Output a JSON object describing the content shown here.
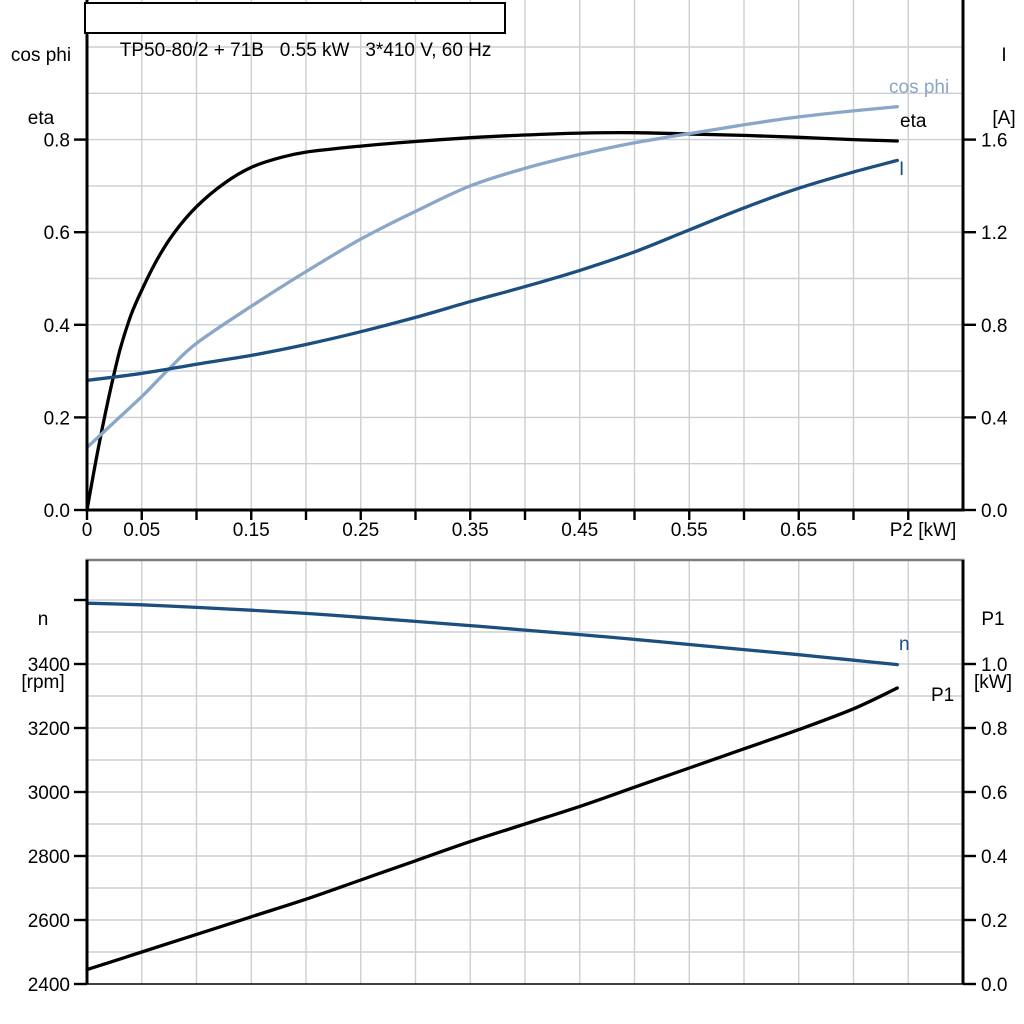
{
  "header": {
    "title": "TP50-80/2 + 71B   0.55 kW   3*410 V, 60 Hz"
  },
  "colors": {
    "curve_black": "#000000",
    "curve_dark_blue": "#1c4e7e",
    "curve_light_blue": "#8aa6c8",
    "grid": "#cbcfd3",
    "border_gray": "#7f7f7f",
    "axis": "#000000",
    "text": "#000000"
  },
  "top_chart": {
    "left_axis_title_line1": "cos phi",
    "left_axis_title_line2": "eta",
    "right_axis_title_line1": "I",
    "right_axis_title_line2": "[A]"
  },
  "bottom_chart": {
    "left_axis_title_line1": "n",
    "left_axis_title_line2": "[rpm]",
    "right_axis_title_line1": "P1",
    "right_axis_title_line2": "[kW]"
  },
  "curve_labels": {
    "cos_phi": "cos phi",
    "eta": "eta",
    "current": "I",
    "speed": "n",
    "power": "P1"
  },
  "chart_data": [
    {
      "type": "line",
      "title": "TP50-80/2 + 71B   0.55 kW   3*410 V, 60 Hz",
      "xlabel": "P2 [kW]",
      "x_range": [
        0,
        0.8
      ],
      "x_grid_step": 0.05,
      "x_ticks": [
        {
          "v": 0,
          "label": "0"
        },
        {
          "v": 0.05,
          "label": "0.05"
        },
        {
          "v": 0.1,
          "label": ""
        },
        {
          "v": 0.15,
          "label": "0.15"
        },
        {
          "v": 0.2,
          "label": ""
        },
        {
          "v": 0.25,
          "label": "0.25"
        },
        {
          "v": 0.3,
          "label": ""
        },
        {
          "v": 0.35,
          "label": "0.35"
        },
        {
          "v": 0.4,
          "label": ""
        },
        {
          "v": 0.45,
          "label": "0.45"
        },
        {
          "v": 0.5,
          "label": ""
        },
        {
          "v": 0.55,
          "label": "0.55"
        },
        {
          "v": 0.6,
          "label": ""
        },
        {
          "v": 0.65,
          "label": "0.65"
        },
        {
          "v": 0.7,
          "label": ""
        },
        {
          "v": 0.75,
          "label": ""
        }
      ],
      "left_axis": {
        "label": "cos phi / eta",
        "range": [
          0,
          1.0
        ],
        "ticks": [
          {
            "v": 0,
            "label": "0.0"
          },
          {
            "v": 0.2,
            "label": "0.2"
          },
          {
            "v": 0.4,
            "label": "0.4"
          },
          {
            "v": 0.6,
            "label": "0.6"
          },
          {
            "v": 0.8,
            "label": "0.8"
          }
        ]
      },
      "right_axis": {
        "label": "I [A]",
        "range": [
          0,
          2.0
        ],
        "ticks": [
          {
            "v": 0,
            "label": "0.0"
          },
          {
            "v": 0.4,
            "label": "0.4"
          },
          {
            "v": 0.8,
            "label": "0.8"
          },
          {
            "v": 1.2,
            "label": "1.2"
          },
          {
            "v": 1.6,
            "label": "1.6"
          }
        ]
      },
      "h_grid": {
        "axis": "left",
        "values": [
          0.1,
          0.2,
          0.3,
          0.4,
          0.5,
          0.6,
          0.7,
          0.8,
          0.9,
          1.0
        ]
      },
      "series": [
        {
          "name": "eta",
          "axis": "left",
          "color_key": "curve_black",
          "points": [
            [
              0,
              0
            ],
            [
              0.01,
              0.13
            ],
            [
              0.02,
              0.245
            ],
            [
              0.03,
              0.345
            ],
            [
              0.04,
              0.42
            ],
            [
              0.05,
              0.475
            ],
            [
              0.065,
              0.545
            ],
            [
              0.08,
              0.6
            ],
            [
              0.1,
              0.655
            ],
            [
              0.125,
              0.705
            ],
            [
              0.15,
              0.74
            ],
            [
              0.175,
              0.76
            ],
            [
              0.2,
              0.773
            ],
            [
              0.25,
              0.786
            ],
            [
              0.3,
              0.796
            ],
            [
              0.35,
              0.804
            ],
            [
              0.4,
              0.81
            ],
            [
              0.45,
              0.814
            ],
            [
              0.5,
              0.815
            ],
            [
              0.55,
              0.812
            ],
            [
              0.6,
              0.809
            ],
            [
              0.65,
              0.805
            ],
            [
              0.7,
              0.8
            ],
            [
              0.74,
              0.797
            ]
          ]
        },
        {
          "name": "cos phi",
          "axis": "left",
          "color_key": "curve_light_blue",
          "points": [
            [
              0,
              0.135
            ],
            [
              0.025,
              0.19
            ],
            [
              0.05,
              0.245
            ],
            [
              0.075,
              0.305
            ],
            [
              0.1,
              0.36
            ],
            [
              0.15,
              0.44
            ],
            [
              0.2,
              0.515
            ],
            [
              0.25,
              0.585
            ],
            [
              0.3,
              0.645
            ],
            [
              0.35,
              0.7
            ],
            [
              0.4,
              0.738
            ],
            [
              0.45,
              0.768
            ],
            [
              0.5,
              0.793
            ],
            [
              0.55,
              0.813
            ],
            [
              0.6,
              0.832
            ],
            [
              0.65,
              0.849
            ],
            [
              0.7,
              0.862
            ],
            [
              0.74,
              0.871
            ]
          ]
        },
        {
          "name": "I",
          "axis": "right",
          "color_key": "curve_dark_blue",
          "points": [
            [
              0,
              0.56
            ],
            [
              0.05,
              0.59
            ],
            [
              0.1,
              0.63
            ],
            [
              0.15,
              0.668
            ],
            [
              0.2,
              0.715
            ],
            [
              0.25,
              0.77
            ],
            [
              0.3,
              0.832
            ],
            [
              0.35,
              0.9
            ],
            [
              0.4,
              0.965
            ],
            [
              0.45,
              1.035
            ],
            [
              0.5,
              1.115
            ],
            [
              0.55,
              1.21
            ],
            [
              0.6,
              1.305
            ],
            [
              0.65,
              1.39
            ],
            [
              0.7,
              1.46
            ],
            [
              0.74,
              1.51
            ]
          ]
        }
      ]
    },
    {
      "type": "line",
      "title": "",
      "xlabel": "",
      "x_range": [
        0,
        0.8
      ],
      "x_grid_step": 0.05,
      "x_ticks": [],
      "left_axis": {
        "label": "n [rpm]",
        "range": [
          2400,
          3725
        ],
        "ticks": [
          {
            "v": 2400,
            "label": "2400"
          },
          {
            "v": 2600,
            "label": "2600"
          },
          {
            "v": 2800,
            "label": "2800"
          },
          {
            "v": 3000,
            "label": "3000"
          },
          {
            "v": 3200,
            "label": "3200"
          },
          {
            "v": 3400,
            "label": "3400"
          },
          {
            "v": 3600,
            "label": ""
          }
        ]
      },
      "right_axis": {
        "label": "P1 [kW]",
        "range": [
          0,
          1.325
        ],
        "ticks": [
          {
            "v": 0,
            "label": "0.0"
          },
          {
            "v": 0.2,
            "label": "0.2"
          },
          {
            "v": 0.4,
            "label": "0.4"
          },
          {
            "v": 0.6,
            "label": "0.6"
          },
          {
            "v": 0.8,
            "label": "0.8"
          },
          {
            "v": 1.0,
            "label": "1.0"
          }
        ]
      },
      "h_grid": {
        "axis": "right",
        "values": [
          0.1,
          0.2,
          0.3,
          0.4,
          0.5,
          0.6,
          0.7,
          0.8,
          0.9,
          1.0,
          1.1,
          1.2
        ]
      },
      "series": [
        {
          "name": "n",
          "axis": "left",
          "color_key": "curve_dark_blue",
          "points": [
            [
              0,
              3590
            ],
            [
              0.05,
              3585
            ],
            [
              0.1,
              3577
            ],
            [
              0.15,
              3568
            ],
            [
              0.2,
              3558
            ],
            [
              0.25,
              3546
            ],
            [
              0.3,
              3533
            ],
            [
              0.35,
              3520
            ],
            [
              0.4,
              3506
            ],
            [
              0.45,
              3492
            ],
            [
              0.5,
              3477
            ],
            [
              0.55,
              3461
            ],
            [
              0.6,
              3445
            ],
            [
              0.65,
              3429
            ],
            [
              0.7,
              3412
            ],
            [
              0.74,
              3398
            ]
          ]
        },
        {
          "name": "P1",
          "axis": "left_as_right",
          "color_key": "curve_black",
          "points": [
            [
              0,
              0.045
            ],
            [
              0.05,
              0.1
            ],
            [
              0.1,
              0.155
            ],
            [
              0.15,
              0.21
            ],
            [
              0.2,
              0.265
            ],
            [
              0.25,
              0.325
            ],
            [
              0.3,
              0.385
            ],
            [
              0.35,
              0.445
            ],
            [
              0.4,
              0.5
            ],
            [
              0.45,
              0.555
            ],
            [
              0.5,
              0.615
            ],
            [
              0.55,
              0.675
            ],
            [
              0.6,
              0.735
            ],
            [
              0.65,
              0.795
            ],
            [
              0.7,
              0.86
            ],
            [
              0.74,
              0.925
            ]
          ]
        }
      ]
    }
  ]
}
